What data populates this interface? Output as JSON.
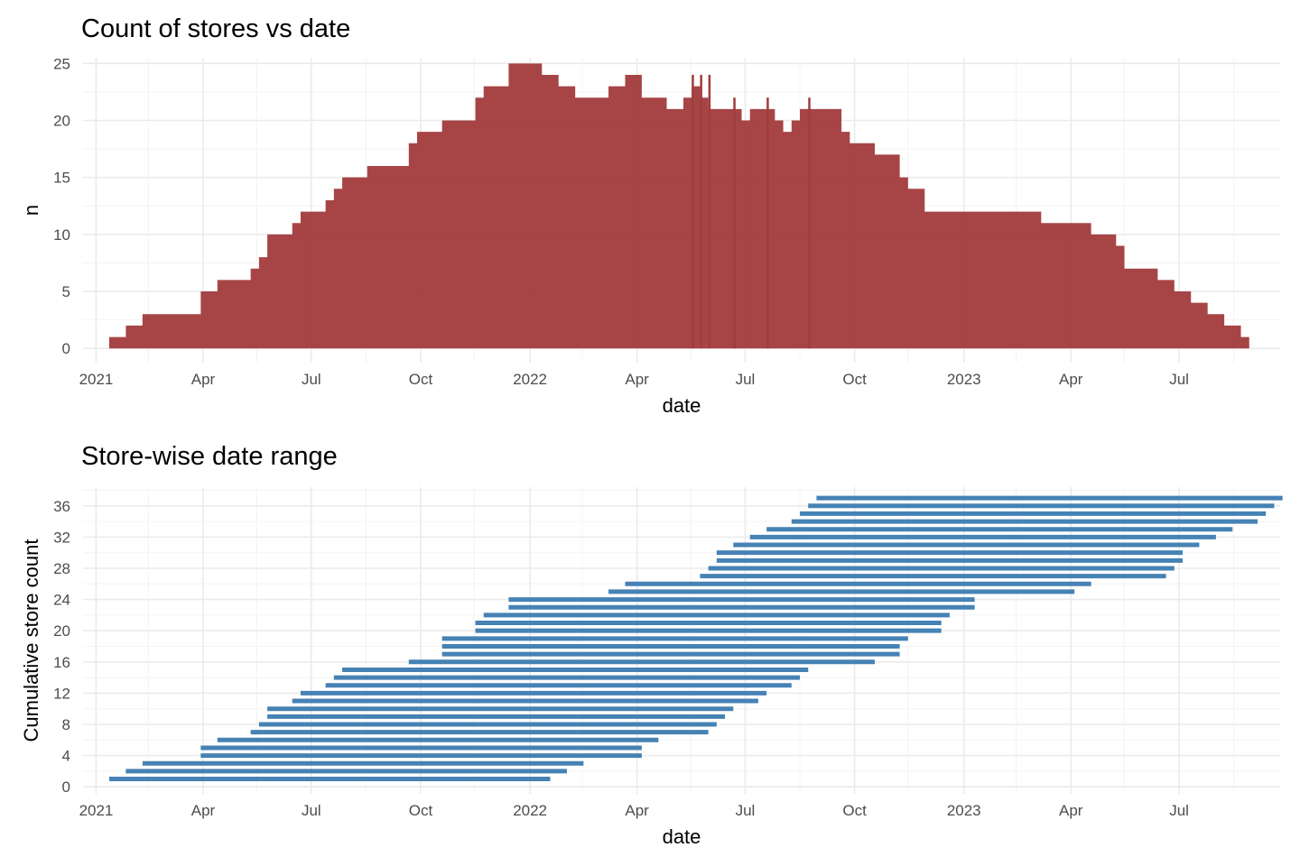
{
  "colors": {
    "area_fill": "#a23b3c",
    "segment": "#4682b4",
    "grid_major": "#ebebeb",
    "grid_minor": "#f4f4f4"
  },
  "chart_data": [
    {
      "type": "area",
      "title": "Count of stores vs date",
      "xlabel": "date",
      "ylabel": "n",
      "x_tick_labels": [
        "2021",
        "Apr",
        "Jul",
        "Oct",
        "2022",
        "Apr",
        "Jul",
        "Oct",
        "2023",
        "Apr",
        "Jul"
      ],
      "y_tick_labels": [
        "0",
        "5",
        "10",
        "15",
        "20",
        "25"
      ],
      "xlim": [
        "2020-12-21",
        "2023-09-24"
      ],
      "ylim": [
        -1.25,
        25.5
      ],
      "step": true,
      "grid": true,
      "series": [
        {
          "x": [
            "2021-01-12",
            "2021-01-26",
            "2021-02-09",
            "2021-02-16",
            "2021-03-30",
            "2021-04-13",
            "2021-05-04",
            "2021-05-11",
            "2021-05-18",
            "2021-05-25",
            "2021-06-15",
            "2021-06-22",
            "2021-07-13",
            "2021-07-20",
            "2021-07-27",
            "2021-08-17",
            "2021-09-21",
            "2021-09-28",
            "2021-10-19",
            "2021-11-16",
            "2021-11-23",
            "2021-12-14",
            "2022-01-11",
            "2022-01-25",
            "2022-02-08",
            "2022-03-08",
            "2022-03-22",
            "2022-04-05",
            "2022-04-26",
            "2022-05-10",
            "2022-05-17",
            "2022-05-24",
            "2022-05-31",
            "2022-06-28",
            "2022-07-05",
            "2022-07-26",
            "2022-08-02",
            "2022-08-09",
            "2022-08-16",
            "2022-09-20",
            "2022-09-27",
            "2022-10-18",
            "2022-11-08",
            "2022-11-15",
            "2022-11-29",
            "2023-02-14",
            "2023-03-07",
            "2023-04-18",
            "2023-05-09",
            "2023-05-16",
            "2023-06-13",
            "2023-06-27",
            "2023-07-11",
            "2023-07-25",
            "2023-08-08",
            "2023-08-22",
            "2023-08-29"
          ],
          "y": [
            1,
            2,
            3,
            3,
            5,
            6,
            6,
            7,
            8,
            10,
            11,
            12,
            13,
            14,
            15,
            16,
            18,
            19,
            20,
            22,
            23,
            25,
            24,
            23,
            22,
            23,
            24,
            22,
            21,
            22,
            23,
            22,
            21,
            20,
            21,
            20,
            19,
            20,
            21,
            19,
            18,
            17,
            15,
            14,
            12,
            12,
            11,
            10,
            9,
            7,
            6,
            5,
            4,
            3,
            2,
            1,
            0
          ]
        }
      ],
      "spikes": [
        {
          "x": "2022-05-17",
          "y": 24
        },
        {
          "x": "2022-05-24",
          "y": 24
        },
        {
          "x": "2022-05-31",
          "y": 24
        },
        {
          "x": "2022-06-21",
          "y": 22
        },
        {
          "x": "2022-07-19",
          "y": 22
        },
        {
          "x": "2022-08-23",
          "y": 22
        }
      ]
    },
    {
      "type": "segment",
      "title": "Store-wise date range",
      "xlabel": "date",
      "ylabel": "Cumulative store count",
      "x_tick_labels": [
        "2021",
        "Apr",
        "Jul",
        "Oct",
        "2022",
        "Apr",
        "Jul",
        "Oct",
        "2023",
        "Apr",
        "Jul"
      ],
      "y_tick_labels": [
        "0",
        "4",
        "8",
        "12",
        "16",
        "20",
        "24",
        "28",
        "32",
        "36"
      ],
      "xlim": [
        "2020-12-21",
        "2023-09-24"
      ],
      "ylim": [
        -0.9,
        38.4
      ],
      "grid": true,
      "segments": [
        {
          "store": 1,
          "start": "2021-01-12",
          "end": "2022-01-18"
        },
        {
          "store": 2,
          "start": "2021-01-26",
          "end": "2022-02-01"
        },
        {
          "store": 3,
          "start": "2021-02-09",
          "end": "2022-02-15"
        },
        {
          "store": 4,
          "start": "2021-03-30",
          "end": "2022-04-05"
        },
        {
          "store": 5,
          "start": "2021-03-30",
          "end": "2022-04-05"
        },
        {
          "store": 6,
          "start": "2021-04-13",
          "end": "2022-04-19"
        },
        {
          "store": 7,
          "start": "2021-05-11",
          "end": "2022-05-31"
        },
        {
          "store": 8,
          "start": "2021-05-18",
          "end": "2022-06-07"
        },
        {
          "store": 9,
          "start": "2021-05-25",
          "end": "2022-06-14"
        },
        {
          "store": 10,
          "start": "2021-05-25",
          "end": "2022-06-21"
        },
        {
          "store": 11,
          "start": "2021-06-15",
          "end": "2022-07-12"
        },
        {
          "store": 12,
          "start": "2021-06-22",
          "end": "2022-07-19"
        },
        {
          "store": 13,
          "start": "2021-07-13",
          "end": "2022-08-09"
        },
        {
          "store": 14,
          "start": "2021-07-20",
          "end": "2022-08-16"
        },
        {
          "store": 15,
          "start": "2021-07-27",
          "end": "2022-08-23"
        },
        {
          "store": 16,
          "start": "2021-09-21",
          "end": "2022-10-18"
        },
        {
          "store": 17,
          "start": "2021-10-19",
          "end": "2022-11-08"
        },
        {
          "store": 18,
          "start": "2021-10-19",
          "end": "2022-11-08"
        },
        {
          "store": 19,
          "start": "2021-10-19",
          "end": "2022-11-15"
        },
        {
          "store": 20,
          "start": "2021-11-16",
          "end": "2022-12-13"
        },
        {
          "store": 21,
          "start": "2021-11-16",
          "end": "2022-12-13"
        },
        {
          "store": 22,
          "start": "2021-11-23",
          "end": "2022-12-20"
        },
        {
          "store": 23,
          "start": "2021-12-14",
          "end": "2023-01-10"
        },
        {
          "store": 24,
          "start": "2021-12-14",
          "end": "2023-01-10"
        },
        {
          "store": 25,
          "start": "2022-03-08",
          "end": "2023-04-04"
        },
        {
          "store": 26,
          "start": "2022-03-22",
          "end": "2023-04-18"
        },
        {
          "store": 27,
          "start": "2022-05-24",
          "end": "2023-06-20"
        },
        {
          "store": 28,
          "start": "2022-05-31",
          "end": "2023-06-27"
        },
        {
          "store": 29,
          "start": "2022-06-07",
          "end": "2023-07-04"
        },
        {
          "store": 30,
          "start": "2022-06-07",
          "end": "2023-07-04"
        },
        {
          "store": 31,
          "start": "2022-06-21",
          "end": "2023-07-18"
        },
        {
          "store": 32,
          "start": "2022-07-05",
          "end": "2023-08-01"
        },
        {
          "store": 33,
          "start": "2022-07-19",
          "end": "2023-08-15"
        },
        {
          "store": 34,
          "start": "2022-08-09",
          "end": "2023-09-05"
        },
        {
          "store": 35,
          "start": "2022-08-16",
          "end": "2023-09-12"
        },
        {
          "store": 36,
          "start": "2022-08-23",
          "end": "2023-09-19"
        },
        {
          "store": 37,
          "start": "2022-08-30",
          "end": "2023-09-26"
        }
      ]
    }
  ]
}
